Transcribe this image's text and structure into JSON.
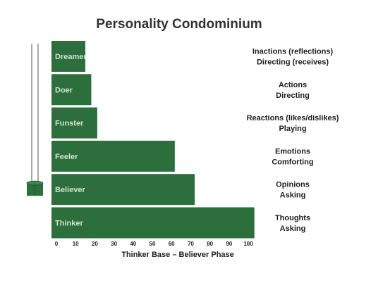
{
  "chart_data": {
    "type": "bar",
    "orientation": "horizontal",
    "title": "Personality Condominium",
    "xlabel": "Thinker Base – Believer Phase",
    "ylabel": "",
    "xlim": [
      0,
      100
    ],
    "xticks": [
      "0",
      "10",
      "20",
      "30",
      "40",
      "50",
      "60",
      "70",
      "80",
      "90",
      "100"
    ],
    "grid": false,
    "categories": [
      "Dreamer",
      "Doer",
      "Funster",
      "Feeler",
      "Believer",
      "Thinker"
    ],
    "values": [
      17,
      20,
      23,
      62,
      72,
      102
    ],
    "descriptions": [
      [
        "Inactions (reflections)",
        "Directing (receives)"
      ],
      [
        "Actions",
        "Directing"
      ],
      [
        "Reactions (likes/dislikes)",
        "Playing"
      ],
      [
        "Emotions",
        "Comforting"
      ],
      [
        "Opinions",
        "Asking"
      ],
      [
        "Thoughts",
        "Asking"
      ]
    ],
    "bar_color": "#2c6e3c",
    "marker_category": "Believer",
    "marker_icon": "elevator-car-icon"
  }
}
